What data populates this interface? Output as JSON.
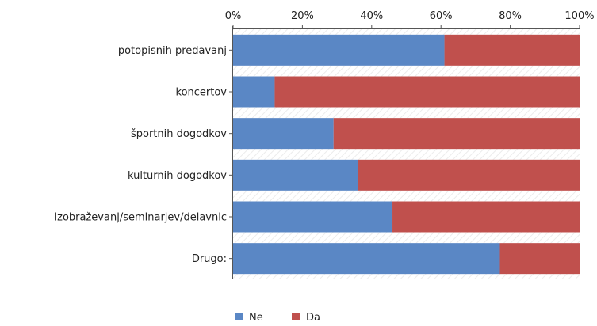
{
  "chart_data": {
    "type": "bar",
    "orientation": "horizontal",
    "stacked": "percent",
    "categories": [
      "potopisnih predavanj",
      "koncertov ",
      "športnih dogodkov",
      "kulturnih dogodkov",
      "izobraževanj/seminarjev/delavnic",
      "Drugo:"
    ],
    "series": [
      {
        "name": "Ne",
        "color": "#5a87c5",
        "values": [
          61,
          12,
          29,
          36,
          46,
          77
        ]
      },
      {
        "name": "Da",
        "color": "#c0504d",
        "values": [
          39,
          88,
          71,
          64,
          54,
          23
        ]
      }
    ],
    "x_ticks": [
      "0%",
      "20%",
      "40%",
      "60%",
      "80%",
      "100%"
    ],
    "xlim": [
      0,
      100
    ],
    "x_axis_position": "top",
    "legend_position": "bottom",
    "grid": false
  }
}
